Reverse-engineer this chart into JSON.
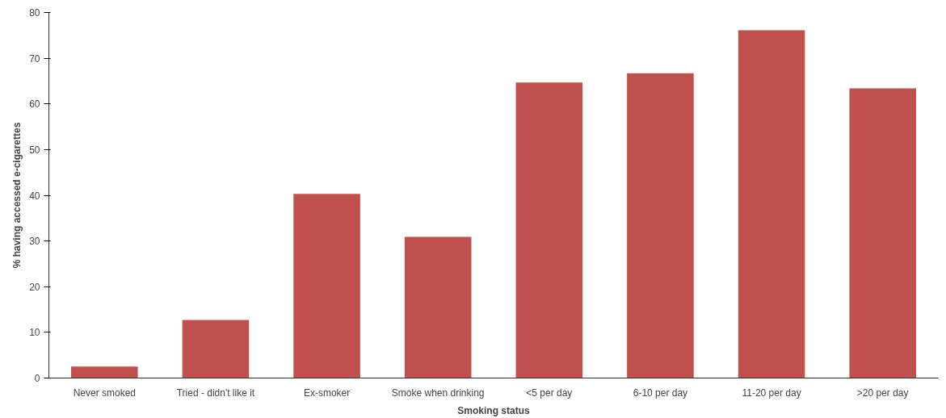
{
  "chart_data": {
    "type": "bar",
    "xlabel": "Smoking status",
    "ylabel": "% having accessed e-cigarettes",
    "categories": [
      "Never smoked",
      "Tried - didn't like it",
      "Ex-smoker",
      "Smoke when drinking",
      "<5 per day",
      "6-10 per day",
      "11-20 per day",
      ">20 per day"
    ],
    "values": [
      2.5,
      12.7,
      40.3,
      30.9,
      64.7,
      66.7,
      76.1,
      63.4
    ],
    "color": "#c0504d",
    "ylim": [
      0,
      80
    ],
    "yticks": [
      0,
      10,
      20,
      30,
      40,
      50,
      60,
      70,
      80
    ],
    "grid": false
  }
}
